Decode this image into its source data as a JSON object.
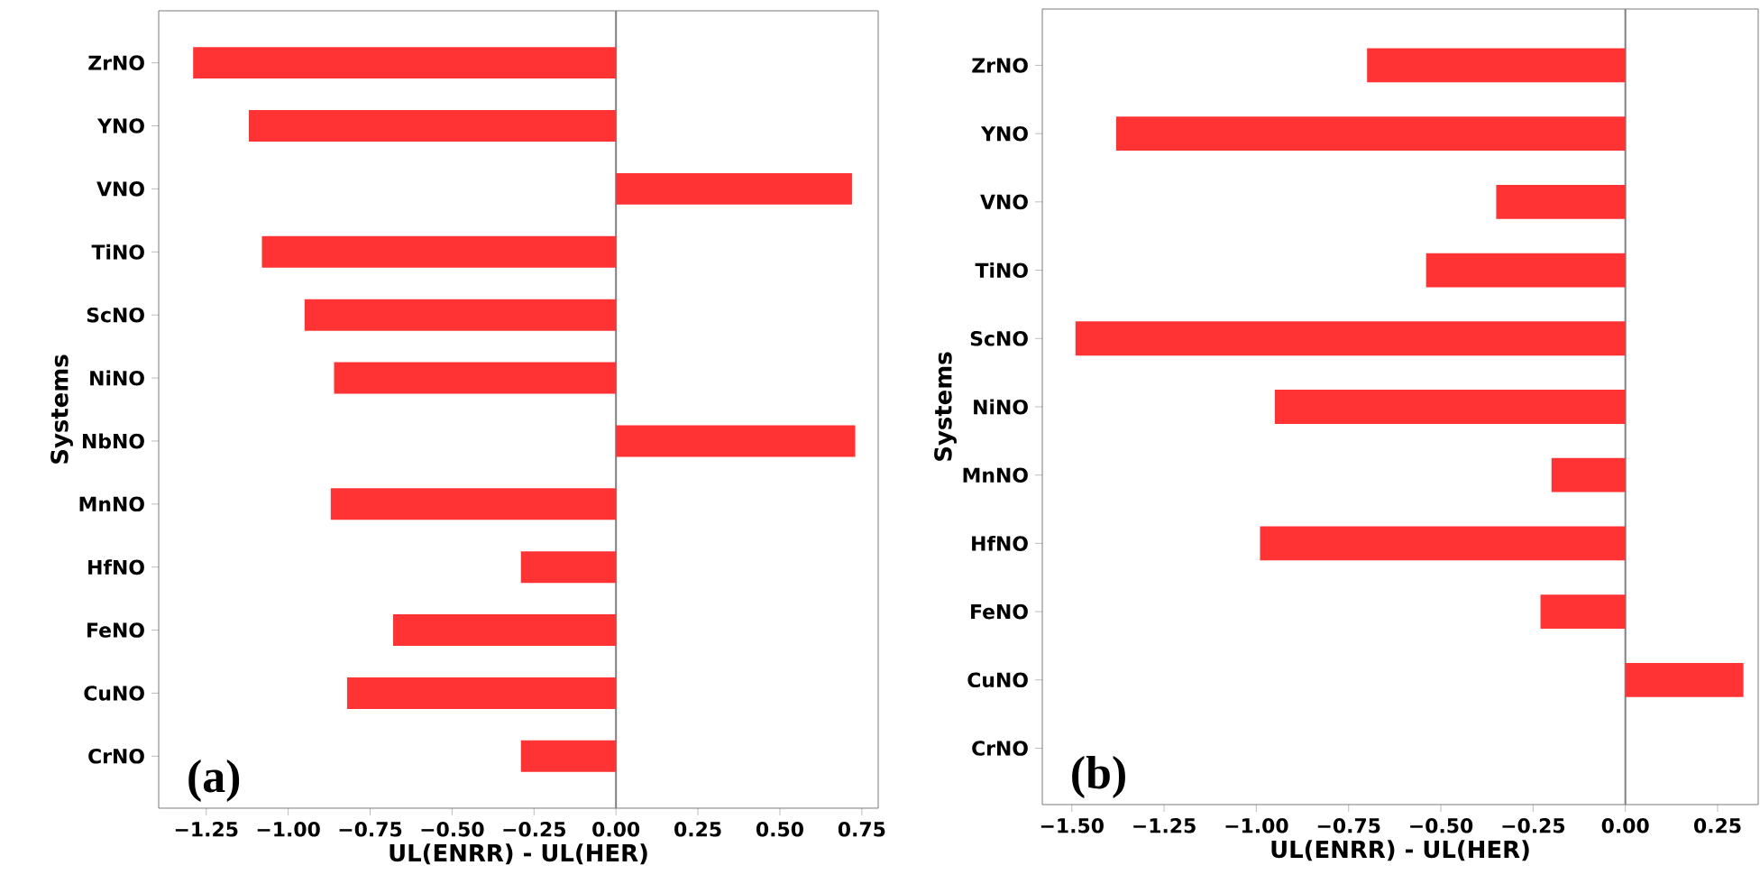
{
  "chart_data": [
    {
      "type": "bar",
      "orientation": "horizontal",
      "xlabel": "UL(ENRR) - UL(HER)",
      "ylabel": "Systems",
      "color": "#ff3333",
      "categories": [
        "ZrNO",
        "YNO",
        "VNO",
        "TiNO",
        "ScNO",
        "NiNO",
        "NbNO",
        "MnNO",
        "HfNO",
        "FeNO",
        "CuNO",
        "CrNO"
      ],
      "values": [
        -1.29,
        -1.12,
        0.72,
        -1.08,
        -0.95,
        -0.86,
        0.73,
        -0.87,
        -0.29,
        -0.68,
        -0.82,
        -0.29
      ],
      "xlim": [
        -1.395,
        0.8
      ],
      "xticks": [
        {
          "value": -1.25,
          "label": "−1.25"
        },
        {
          "value": -1.0,
          "label": "−1.00"
        },
        {
          "value": -0.75,
          "label": "−0.75"
        },
        {
          "value": -0.5,
          "label": "−0.50"
        },
        {
          "value": -0.25,
          "label": "−0.25"
        },
        {
          "value": 0,
          "label": "0.00"
        },
        {
          "value": 0.25,
          "label": "0.25"
        },
        {
          "value": 0.5,
          "label": "0.50"
        },
        {
          "value": 0.75,
          "label": "0.75"
        }
      ],
      "ref_lines": [
        {
          "axis": "x",
          "value": 0,
          "color": "#808080"
        }
      ],
      "annotations": [
        "(a)"
      ]
    },
    {
      "type": "bar",
      "orientation": "horizontal",
      "xlabel": "UL(ENRR) - UL(HER)",
      "ylabel": "Systems",
      "color": "#ff3333",
      "categories": [
        "ZrNO",
        "YNO",
        "VNO",
        "TiNO",
        "ScNO",
        "NiNO",
        "MnNO",
        "HfNO",
        "FeNO",
        "CuNO",
        "CrNO"
      ],
      "values": [
        -0.7,
        -1.38,
        -0.35,
        -0.54,
        -1.49,
        -0.95,
        -0.2,
        -0.99,
        -0.23,
        0.32,
        0.0
      ],
      "xlim": [
        -1.58,
        0.36
      ],
      "xticks": [
        {
          "value": -1.5,
          "label": "−1.50"
        },
        {
          "value": -1.25,
          "label": "−1.25"
        },
        {
          "value": -1.0,
          "label": "−1.00"
        },
        {
          "value": -0.75,
          "label": "−0.75"
        },
        {
          "value": -0.5,
          "label": "−0.50"
        },
        {
          "value": -0.25,
          "label": "−0.25"
        },
        {
          "value": 0,
          "label": "0.00"
        },
        {
          "value": 0.25,
          "label": "0.25"
        }
      ],
      "ref_lines": [
        {
          "axis": "x",
          "value": 0,
          "color": "#808080"
        }
      ],
      "annotations": [
        "(b)"
      ]
    }
  ]
}
